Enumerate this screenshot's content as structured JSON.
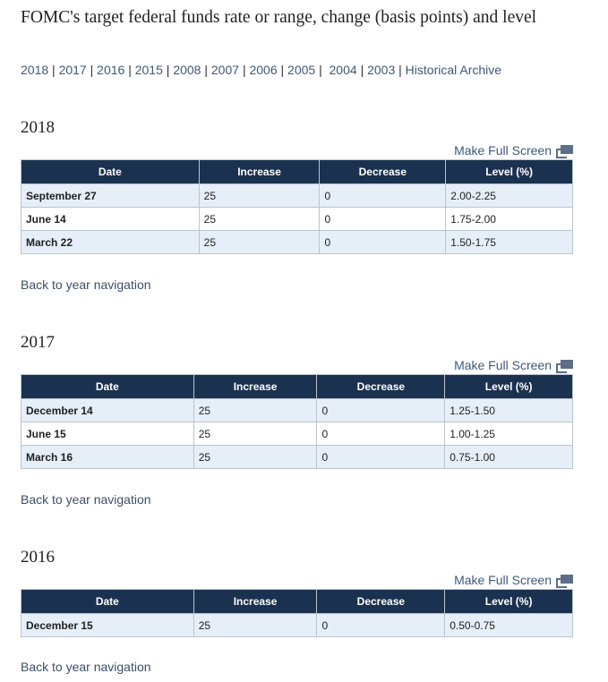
{
  "title": "FOMC's target federal funds rate or range, change (basis points) and level",
  "year_nav": [
    "2018",
    "2017",
    "2016",
    "2015",
    "2008",
    "2007",
    "2006",
    "2005",
    "2004",
    "2003",
    "Historical Archive"
  ],
  "full_screen_label": "Make Full Screen",
  "back_label": "Back to year navigation",
  "columns": [
    "Date",
    "Increase",
    "Decrease",
    "Level (%)"
  ],
  "sections": [
    {
      "year": "2018",
      "rows": [
        [
          "September 27",
          "25",
          "0",
          "2.00-2.25"
        ],
        [
          "June 14",
          "25",
          "0",
          "1.75-2.00"
        ],
        [
          "March 22",
          "25",
          "0",
          "1.50-1.75"
        ]
      ]
    },
    {
      "year": "2017",
      "rows": [
        [
          "December 14",
          "25",
          "0",
          "1.25-1.50"
        ],
        [
          "June 15",
          "25",
          "0",
          "1.00-1.25"
        ],
        [
          "March 16",
          "25",
          "0",
          "0.75-1.00"
        ]
      ]
    },
    {
      "year": "2016",
      "rows": [
        [
          "December 15",
          "25",
          "0",
          "0.50-0.75"
        ]
      ]
    }
  ]
}
